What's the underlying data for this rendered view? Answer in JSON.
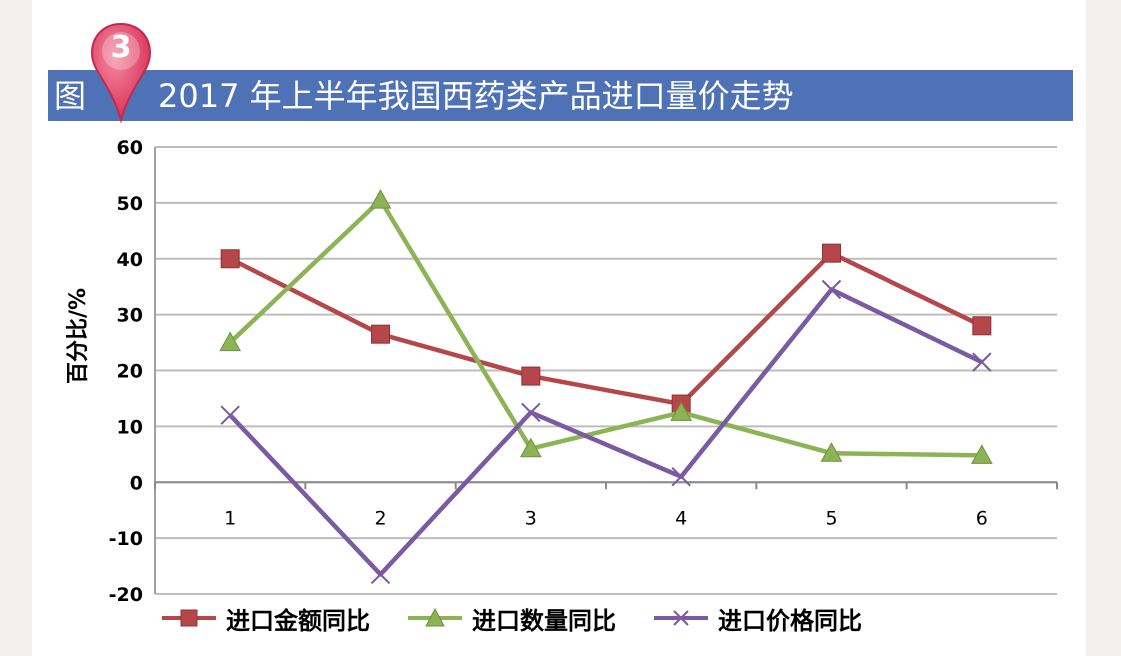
{
  "header": {
    "prefix": "图",
    "badge_number": "3",
    "title": "2017 年上半年我国西药类产品进口量价走势"
  },
  "colors": {
    "title_bar": "#4f72b6",
    "badge": "#e8466a",
    "series": [
      "#b5474a",
      "#8cb356",
      "#7a5aa0"
    ]
  },
  "chart_data": {
    "type": "line",
    "title": "2017 年上半年我国西药类产品进口量价走势",
    "xlabel": "",
    "ylabel": "百分比/%",
    "x": [
      1,
      2,
      3,
      4,
      5,
      6
    ],
    "categories": [
      "1",
      "2",
      "3",
      "4",
      "5",
      "6"
    ],
    "ylim": [
      -20,
      60
    ],
    "yticks": [
      -20,
      -10,
      0,
      10,
      20,
      30,
      40,
      50,
      60
    ],
    "ytick_labels": [
      "-20",
      "-10",
      "0",
      "10",
      "20",
      "30",
      "40",
      "50",
      "60"
    ],
    "grid": true,
    "legend_position": "bottom",
    "series": [
      {
        "name": "进口金额同比",
        "marker": "square",
        "values": [
          40,
          26.5,
          19,
          14,
          41,
          28
        ]
      },
      {
        "name": "进口数量同比",
        "marker": "triangle",
        "values": [
          25,
          50.5,
          6,
          12.5,
          5.2,
          4.8
        ]
      },
      {
        "name": "进口价格同比",
        "marker": "x",
        "values": [
          12,
          -16.5,
          12.5,
          1,
          34.5,
          21.5
        ]
      }
    ]
  }
}
